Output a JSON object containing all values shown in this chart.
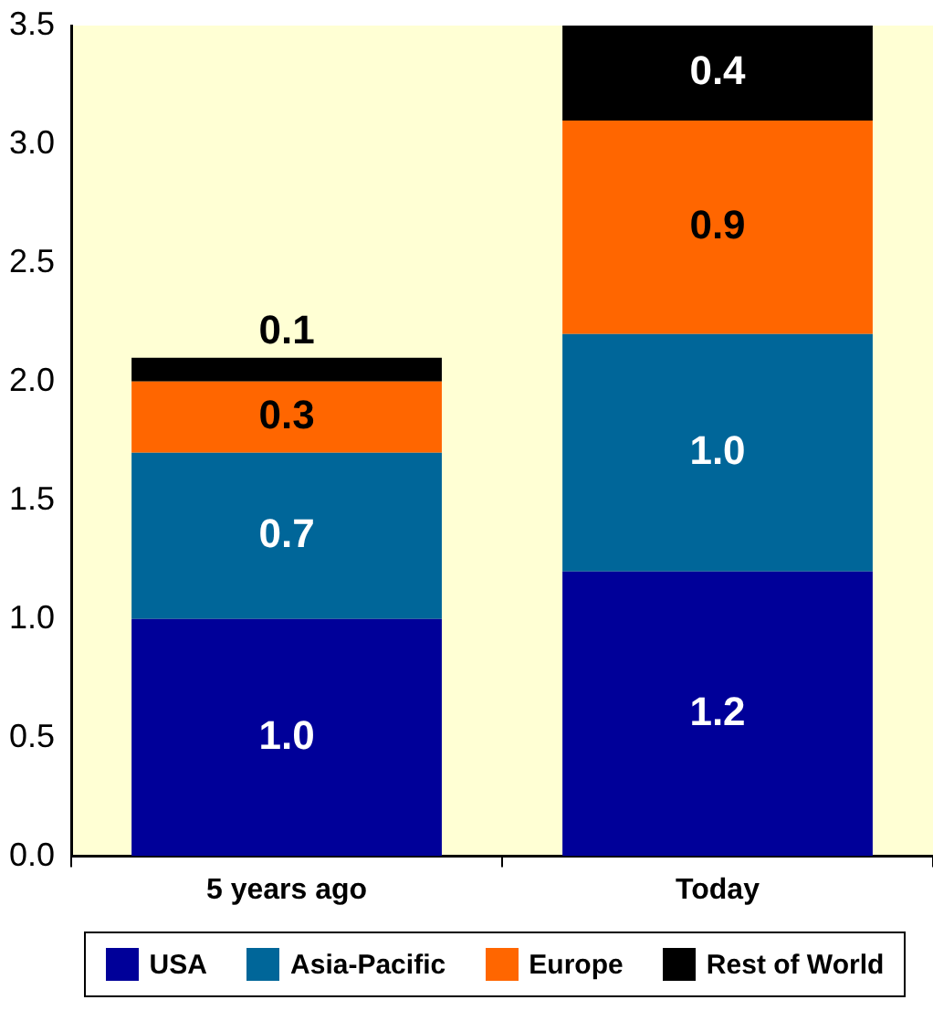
{
  "chart_data": {
    "type": "bar",
    "stacked": true,
    "categories": [
      "5 years ago",
      "Today"
    ],
    "series": [
      {
        "name": "USA",
        "color": "#000099",
        "values": [
          1.0,
          1.2
        ],
        "value_labels": [
          "1.0",
          "1.2"
        ]
      },
      {
        "name": "Asia-Pacific",
        "color": "#006699",
        "values": [
          0.7,
          1.0
        ],
        "value_labels": [
          "0.7",
          "1.0"
        ]
      },
      {
        "name": "Europe",
        "color": "#ff6600",
        "values": [
          0.3,
          0.9
        ],
        "value_labels": [
          "0.3",
          "0.9"
        ]
      },
      {
        "name": "Rest of World",
        "color": "#000000",
        "values": [
          0.1,
          0.4
        ],
        "value_labels": [
          "0.1",
          "0.4"
        ]
      }
    ],
    "ylim": [
      0,
      3.5
    ],
    "yticks": [
      {
        "value": 0,
        "label": "0.0"
      },
      {
        "value": 0.5,
        "label": "0.5"
      },
      {
        "value": 1,
        "label": "1.0"
      },
      {
        "value": 1.5,
        "label": "1.5"
      },
      {
        "value": 2,
        "label": "2.0"
      },
      {
        "value": 2.5,
        "label": "2.5"
      },
      {
        "value": 3,
        "label": "3.0"
      },
      {
        "value": 3.5,
        "label": "3.5"
      }
    ],
    "grid": false,
    "legend": "bottom"
  }
}
